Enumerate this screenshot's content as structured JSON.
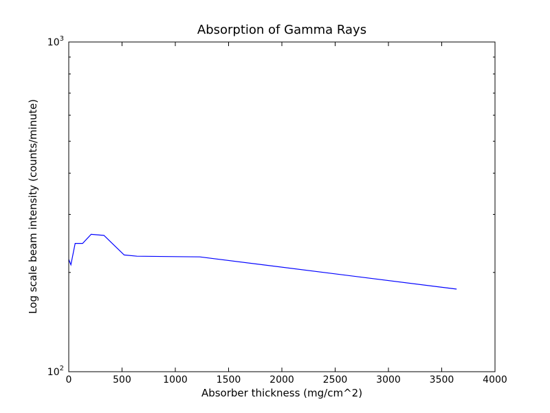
{
  "chart_data": {
    "type": "line",
    "title": "Absorption of Gamma Rays",
    "xlabel": "Absorber thickness (mg/cm^2)",
    "ylabel": "Log scale beam intensity (counts/minute)",
    "xlim": [
      0,
      4000
    ],
    "ylim": [
      100,
      1000
    ],
    "yscale": "log",
    "grid": false,
    "x_ticks": [
      {
        "value": 0,
        "label": "0"
      },
      {
        "value": 500,
        "label": "500"
      },
      {
        "value": 1000,
        "label": "1000"
      },
      {
        "value": 1500,
        "label": "1500"
      },
      {
        "value": 2000,
        "label": "2000"
      },
      {
        "value": 2500,
        "label": "2500"
      },
      {
        "value": 3000,
        "label": "3000"
      },
      {
        "value": 3500,
        "label": "3500"
      },
      {
        "value": 4000,
        "label": "4000"
      }
    ],
    "y_major_ticks": [
      {
        "value": 100,
        "base": "10",
        "exp": "2"
      },
      {
        "value": 1000,
        "base": "10",
        "exp": "3"
      }
    ],
    "y_minor_ticks": [
      200,
      300,
      400,
      500,
      600,
      700,
      800,
      900
    ],
    "series": [
      {
        "color": "#0000ff",
        "x": [
          0,
          20,
          60,
          130,
          210,
          330,
          520,
          640,
          1230,
          3640
        ],
        "y": [
          219,
          211,
          245,
          245,
          261,
          259,
          226,
          224,
          223,
          178
        ]
      }
    ]
  }
}
